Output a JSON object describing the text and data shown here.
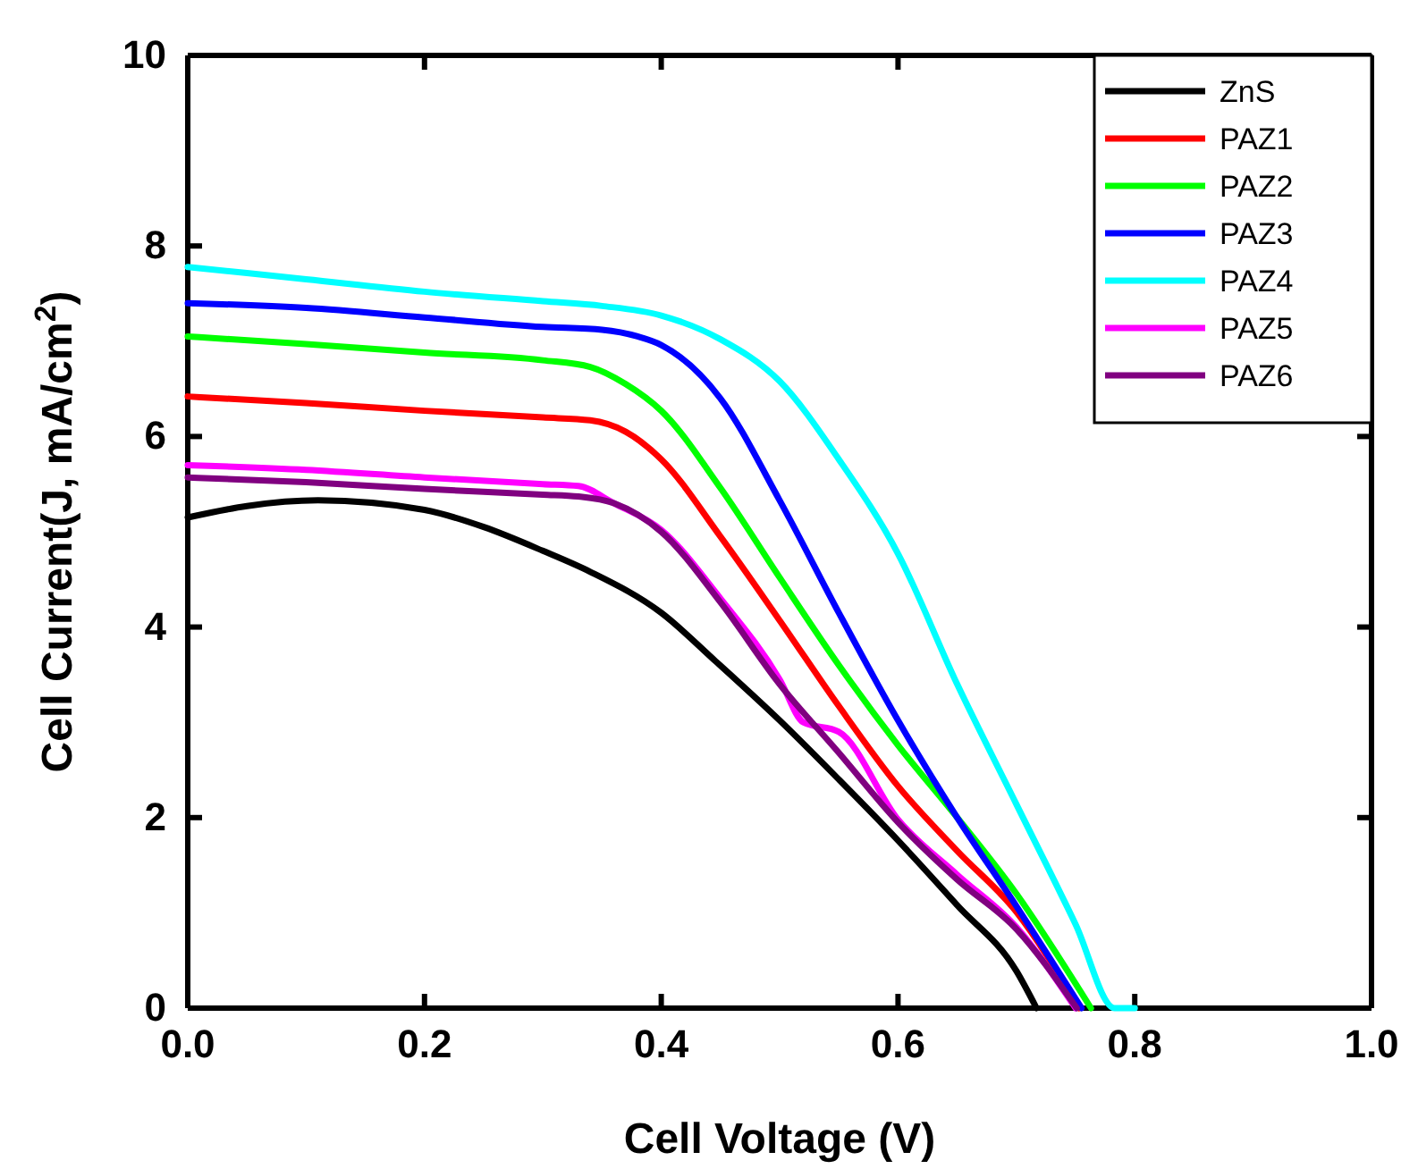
{
  "chart_data": {
    "type": "line",
    "xlabel": "Cell Voltage (V)",
    "ylabel": "Cell Current(J, mA/cm$^{2}$)",
    "xlim": [
      0,
      1.0
    ],
    "ylim": [
      0,
      10
    ],
    "xticks": [
      {
        "value": 0,
        "label": "0.0"
      },
      0.2,
      0.4,
      0.6,
      0.8,
      {
        "value": 1,
        "label": "1.0"
      }
    ],
    "yticks": [
      0,
      2,
      4,
      6,
      8,
      10
    ],
    "legend": "top right",
    "grid": false,
    "line_style": "solid",
    "marker": "none",
    "series": [
      {
        "name": "ZnS",
        "color": "#000000",
        "x": [
          0,
          0.05,
          0.11,
          0.2,
          0.25,
          0.3,
          0.34,
          0.4,
          0.446,
          0.5,
          0.55,
          0.6,
          0.65,
          0.7,
          0.717
        ],
        "values": [
          5.15,
          5.27,
          5.33,
          5.23,
          5.05,
          4.8,
          4.58,
          4.15,
          3.64,
          3.02,
          2.4,
          1.76,
          1.08,
          0.39,
          0
        ]
      },
      {
        "name": "PAZ1",
        "color": "#ff0000",
        "x": [
          0,
          0.1,
          0.2,
          0.3,
          0.34,
          0.37,
          0.4,
          0.45,
          0.5,
          0.55,
          0.6,
          0.65,
          0.7,
          0.753
        ],
        "values": [
          6.42,
          6.35,
          6.27,
          6.2,
          6.17,
          6.05,
          5.76,
          4.95,
          4.07,
          3.17,
          2.33,
          1.65,
          1.01,
          0
        ]
      },
      {
        "name": "PAZ2",
        "color": "#00ff00",
        "x": [
          0,
          0.1,
          0.2,
          0.3,
          0.34,
          0.37,
          0.4,
          0.45,
          0.5,
          0.55,
          0.6,
          0.65,
          0.7,
          0.763
        ],
        "values": [
          7.05,
          6.97,
          6.88,
          6.8,
          6.73,
          6.55,
          6.27,
          5.46,
          4.52,
          3.6,
          2.76,
          2.0,
          1.2,
          0
        ]
      },
      {
        "name": "PAZ3",
        "color": "#0000ff",
        "x": [
          0,
          0.1,
          0.2,
          0.3,
          0.35,
          0.38,
          0.4,
          0.45,
          0.5,
          0.55,
          0.6,
          0.65,
          0.7,
          0.755
        ],
        "values": [
          7.4,
          7.35,
          7.25,
          7.15,
          7.12,
          7.05,
          6.96,
          6.4,
          5.33,
          4.15,
          3.02,
          2.0,
          1.07,
          0
        ]
      },
      {
        "name": "PAZ4",
        "color": "#00ffff",
        "x": [
          0,
          0.1,
          0.2,
          0.3,
          0.35,
          0.4,
          0.45,
          0.5,
          0.55,
          0.6,
          0.65,
          0.7,
          0.75,
          0.783,
          0.8
        ],
        "values": [
          7.78,
          7.65,
          7.52,
          7.42,
          7.37,
          7.27,
          7.02,
          6.58,
          5.76,
          4.77,
          3.4,
          2.14,
          0.88,
          0,
          0
        ]
      },
      {
        "name": "PAZ5",
        "color": "#ff00ff",
        "x": [
          0,
          0.1,
          0.2,
          0.3,
          0.33,
          0.36,
          0.4,
          0.45,
          0.5,
          0.52,
          0.55,
          0.6,
          0.65,
          0.7,
          0.75
        ],
        "values": [
          5.7,
          5.65,
          5.57,
          5.5,
          5.48,
          5.3,
          5.02,
          4.3,
          3.45,
          3.0,
          2.9,
          1.98,
          1.4,
          0.85,
          0
        ]
      },
      {
        "name": "PAZ6",
        "color": "#800080",
        "x": [
          0,
          0.1,
          0.2,
          0.3,
          0.33,
          0.36,
          0.4,
          0.45,
          0.5,
          0.55,
          0.6,
          0.65,
          0.7,
          0.751
        ],
        "values": [
          5.57,
          5.52,
          5.45,
          5.39,
          5.37,
          5.3,
          5.0,
          4.26,
          3.4,
          2.68,
          1.95,
          1.35,
          0.83,
          0
        ]
      }
    ]
  }
}
